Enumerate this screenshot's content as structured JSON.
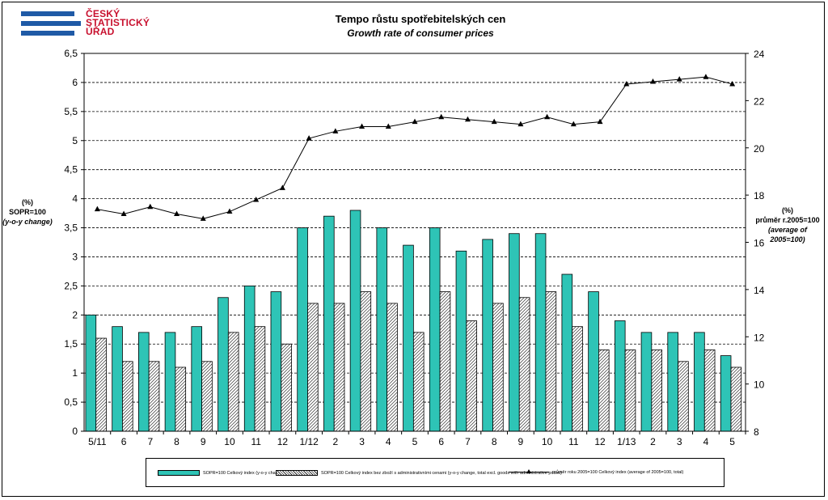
{
  "header": {
    "logo_lines": [
      "ČESKÝ",
      "STATISTICKÝ",
      "ÚŘAD"
    ],
    "title": "Tempo růstu spotřebitelských  cen",
    "subtitle": "Growth rate of consumer prices"
  },
  "colors": {
    "logo_blue": "#1f5aa6",
    "logo_red": "#c8102e",
    "bar_total": "#2ec4b6",
    "bar_excl": "#ffffff",
    "line": "#000000"
  },
  "chart_data": {
    "type": "bar",
    "categories": [
      "5/11",
      "6",
      "7",
      "8",
      "9",
      "10",
      "11",
      "12",
      "1/12",
      "2",
      "3",
      "4",
      "5",
      "6",
      "7",
      "8",
      "9",
      "10",
      "11",
      "12",
      "1/13",
      "2",
      "3",
      "4",
      "5"
    ],
    "left_axis": {
      "label_lines": [
        "(%)",
        "SOPR=100",
        "(y-o-y change)"
      ],
      "ylim": [
        0,
        6.5
      ],
      "ticks": [
        "0",
        "0,5",
        "1",
        "1,5",
        "2",
        "2,5",
        "3",
        "3,5",
        "4",
        "4,5",
        "5",
        "5,5",
        "6",
        "6,5"
      ]
    },
    "right_axis": {
      "label_lines": [
        "(%)",
        "průměr r.2005=100",
        "(average  of 2005=100)"
      ],
      "ylim": [
        8,
        24
      ],
      "ticks": [
        "8",
        "10",
        "12",
        "14",
        "16",
        "18",
        "20",
        "22",
        "24"
      ]
    },
    "grid": true,
    "legend_position": "bottom",
    "series": [
      {
        "name": "SOPR=100 Celkový index (y-o-y change, total)",
        "kind": "bar",
        "axis": "left",
        "values": [
          2.0,
          1.8,
          1.7,
          1.7,
          1.8,
          2.3,
          2.5,
          2.4,
          3.5,
          3.7,
          3.8,
          3.5,
          3.2,
          3.5,
          3.1,
          3.3,
          3.4,
          3.4,
          2.7,
          2.4,
          1.9,
          1.7,
          1.7,
          1.7,
          1.3
        ]
      },
      {
        "name": "SOPR=100 Celkový index bez zboží s administrativními cenami (y-o-y change, total excl. goods with administrative prices)",
        "kind": "bar",
        "axis": "left",
        "values": [
          1.6,
          1.2,
          1.2,
          1.1,
          1.2,
          1.7,
          1.8,
          1.5,
          2.2,
          2.2,
          2.4,
          2.2,
          1.7,
          2.4,
          1.9,
          2.2,
          2.3,
          2.4,
          1.8,
          1.4,
          1.4,
          1.4,
          1.2,
          1.4,
          1.1
        ]
      },
      {
        "name": "průměr roku 2005=100 Celkový index (average of 2005=100, total)",
        "kind": "line",
        "axis": "right",
        "values": [
          17.4,
          17.2,
          17.5,
          17.2,
          17.0,
          17.3,
          17.8,
          18.3,
          20.4,
          20.7,
          20.9,
          20.9,
          21.1,
          21.3,
          21.2,
          21.1,
          21.0,
          21.3,
          21.0,
          21.1,
          22.7,
          22.8,
          22.9,
          23.0,
          22.7
        ]
      }
    ]
  }
}
